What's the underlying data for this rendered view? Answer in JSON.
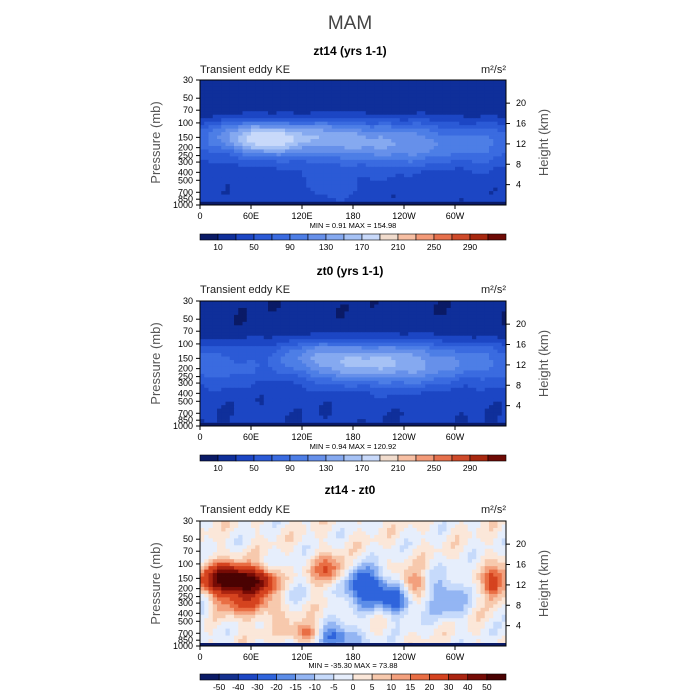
{
  "figure": {
    "title": "MAM"
  },
  "chart_data": [
    {
      "type": "heatmap",
      "title": "zt14 (yrs 1-1)",
      "subtitle_left": "Transient eddy KE",
      "units": "m²/s²",
      "ylabel_left": "Pressure (mb)",
      "ylabel_right": "Height (km)",
      "x_ticks": [
        "0",
        "60E",
        "120E",
        "180",
        "120W",
        "60W"
      ],
      "x_tick_positions_deg": [
        0,
        60,
        120,
        180,
        240,
        300
      ],
      "xlim": [
        0,
        360
      ],
      "y_ticks_pressure": [
        "30",
        "50",
        "70",
        "100",
        "150",
        "200",
        "250",
        "300",
        "400",
        "500",
        "700",
        "850",
        "1000"
      ],
      "y_ticks_height": [
        "20",
        "16",
        "12",
        "8",
        "4"
      ],
      "stats_text": "MIN =      0.91   MAX =   154.98",
      "colorbar_labels": [
        "10",
        "50",
        "90",
        "130",
        "170",
        "210",
        "250",
        "290"
      ],
      "colorbar_levels": [
        10,
        30,
        50,
        70,
        90,
        110,
        130,
        150,
        170,
        190,
        210,
        230,
        250,
        270,
        290
      ],
      "field": {
        "baseline": 35,
        "jets": [
          {
            "lon": 65,
            "p": 150,
            "amp": 115,
            "lon_w": 38,
            "ly_w": 0.32
          },
          {
            "lon": 100,
            "p": 180,
            "amp": 55,
            "lon_w": 40,
            "ly_w": 0.4
          },
          {
            "lon": 160,
            "p": 140,
            "amp": 60,
            "lon_w": 35,
            "ly_w": 0.35
          },
          {
            "lon": 210,
            "p": 200,
            "amp": 65,
            "lon_w": 45,
            "ly_w": 0.45
          },
          {
            "lon": 265,
            "p": 170,
            "amp": 55,
            "lon_w": 35,
            "ly_w": 0.4
          },
          {
            "lon": 330,
            "p": 200,
            "amp": 50,
            "lon_w": 25,
            "ly_w": 0.4
          },
          {
            "lon": 155,
            "p": 600,
            "amp": 25,
            "lon_w": 25,
            "ly_w": 0.3
          }
        ]
      },
      "colors": [
        "#0a1a66",
        "#0f2f9a",
        "#1c46c4",
        "#2b5ad6",
        "#3a6be0",
        "#4d7ee6",
        "#6690ea",
        "#85a9f0",
        "#a6c2f5",
        "#c8d9fa",
        "#f1dccd",
        "#f7bfa3",
        "#f39a78",
        "#e6704c",
        "#cf4a2a",
        "#a8280f",
        "#6e0a05"
      ]
    },
    {
      "type": "heatmap",
      "title": "zt0 (yrs 1-1)",
      "subtitle_left": "Transient eddy KE",
      "units": "m²/s²",
      "ylabel_left": "Pressure (mb)",
      "ylabel_right": "Height (km)",
      "x_ticks": [
        "0",
        "60E",
        "120E",
        "180",
        "120W",
        "60W"
      ],
      "x_tick_positions_deg": [
        0,
        60,
        120,
        180,
        240,
        300
      ],
      "xlim": [
        0,
        360
      ],
      "y_ticks_pressure": [
        "30",
        "50",
        "70",
        "100",
        "150",
        "200",
        "250",
        "300",
        "400",
        "500",
        "700",
        "850",
        "1000"
      ],
      "y_ticks_height": [
        "20",
        "16",
        "12",
        "8",
        "4"
      ],
      "stats_text": "MIN =      0.94   MAX =   120.92",
      "colorbar_labels": [
        "10",
        "50",
        "90",
        "130",
        "170",
        "210",
        "250",
        "290"
      ],
      "colorbar_levels": [
        10,
        30,
        50,
        70,
        90,
        110,
        130,
        150,
        170,
        190,
        210,
        230,
        250,
        270,
        290
      ],
      "field": {
        "baseline": 32,
        "jets": [
          {
            "lon": 140,
            "p": 150,
            "amp": 70,
            "lon_w": 45,
            "ly_w": 0.4
          },
          {
            "lon": 200,
            "p": 180,
            "amp": 75,
            "lon_w": 50,
            "ly_w": 0.45
          },
          {
            "lon": 260,
            "p": 170,
            "amp": 65,
            "lon_w": 40,
            "ly_w": 0.45
          },
          {
            "lon": 30,
            "p": 200,
            "amp": 40,
            "lon_w": 30,
            "ly_w": 0.4
          },
          {
            "lon": 330,
            "p": 170,
            "amp": 45,
            "lon_w": 30,
            "ly_w": 0.4
          }
        ]
      },
      "colors": [
        "#0a1a66",
        "#0f2f9a",
        "#1c46c4",
        "#2b5ad6",
        "#3a6be0",
        "#4d7ee6",
        "#6690ea",
        "#85a9f0",
        "#a6c2f5",
        "#c8d9fa",
        "#f1dccd",
        "#f7bfa3",
        "#f39a78",
        "#e6704c",
        "#cf4a2a",
        "#a8280f",
        "#6e0a05"
      ]
    },
    {
      "type": "heatmap",
      "title": "zt14 - zt0",
      "subtitle_left": "Transient eddy KE",
      "units": "m²/s²",
      "ylabel_left": "Pressure (mb)",
      "ylabel_right": "Height (km)",
      "x_ticks": [
        "0",
        "60E",
        "120E",
        "180",
        "120W",
        "60W"
      ],
      "x_tick_positions_deg": [
        0,
        60,
        120,
        180,
        240,
        300
      ],
      "xlim": [
        0,
        360
      ],
      "y_ticks_pressure": [
        "30",
        "50",
        "70",
        "100",
        "150",
        "200",
        "250",
        "300",
        "400",
        "500",
        "700",
        "850",
        "1000"
      ],
      "y_ticks_height": [
        "20",
        "16",
        "12",
        "8",
        "4"
      ],
      "stats_text": "MIN =   -35.30   MAX =    73.88",
      "colorbar_labels": [
        "-50",
        "-40",
        "-30",
        "-20",
        "-15",
        "-10",
        "-5",
        "0",
        "5",
        "10",
        "15",
        "20",
        "30",
        "40",
        "50"
      ],
      "colorbar_levels": [
        -50,
        -40,
        -30,
        -20,
        -15,
        -10,
        -5,
        0,
        5,
        10,
        15,
        20,
        30,
        40,
        50
      ],
      "field": {
        "baseline": 0,
        "jets": [
          {
            "lon": 55,
            "p": 160,
            "amp": 55,
            "lon_w": 25,
            "ly_w": 0.25
          },
          {
            "lon": 25,
            "p": 150,
            "amp": 30,
            "lon_w": 18,
            "ly_w": 0.3
          },
          {
            "lon": 60,
            "p": 300,
            "amp": 20,
            "lon_w": 30,
            "ly_w": 0.3
          },
          {
            "lon": 125,
            "p": 700,
            "amp": 22,
            "lon_w": 15,
            "ly_w": 0.2
          },
          {
            "lon": 155,
            "p": 130,
            "amp": 25,
            "lon_w": 15,
            "ly_w": 0.3
          },
          {
            "lon": 345,
            "p": 180,
            "amp": 25,
            "lon_w": 8,
            "ly_w": 0.3
          },
          {
            "lon": 250,
            "p": 180,
            "amp": 18,
            "lon_w": 12,
            "ly_w": 0.3
          },
          {
            "lon": 190,
            "p": 180,
            "amp": -30,
            "lon_w": 22,
            "ly_w": 0.35
          },
          {
            "lon": 230,
            "p": 280,
            "amp": -22,
            "lon_w": 18,
            "ly_w": 0.3
          },
          {
            "lon": 160,
            "p": 800,
            "amp": -25,
            "lon_w": 20,
            "ly_w": 0.25
          },
          {
            "lon": 100,
            "p": 200,
            "amp": -12,
            "lon_w": 15,
            "ly_w": 0.4
          },
          {
            "lon": 290,
            "p": 250,
            "amp": -18,
            "lon_w": 15,
            "ly_w": 0.4
          },
          {
            "lon": 5,
            "p": 350,
            "amp": -10,
            "lon_w": 8,
            "ly_w": 0.3
          }
        ]
      },
      "colors": [
        "#0a1a66",
        "#13308f",
        "#1c46c4",
        "#2f64dc",
        "#5c8de8",
        "#93b5f3",
        "#c6dafb",
        "#e6eefc",
        "#fbe7d9",
        "#f7c9ad",
        "#f3a07d",
        "#e96e44",
        "#d5431f",
        "#ab2410",
        "#760b05",
        "#4a0202"
      ]
    }
  ]
}
